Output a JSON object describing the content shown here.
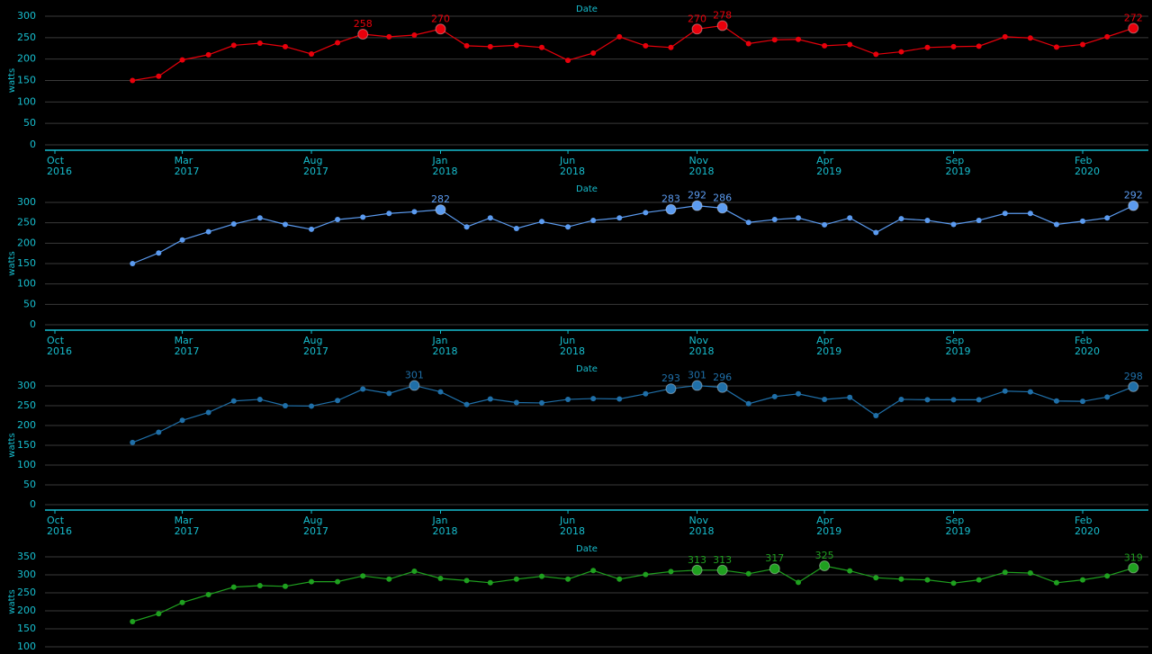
{
  "colors": {
    "background": "#000000",
    "axis_text": "#17becf",
    "grid": "#3a3a3a",
    "axis_line": "#17becf",
    "series": [
      "#e8000b",
      "#5b9bf0",
      "#1f6fa8",
      "#1fa01f"
    ]
  },
  "chart_data": [
    {
      "type": "line",
      "title": "Date",
      "ylabel": "watts",
      "ylim": [
        0,
        300
      ],
      "yticks": [
        0,
        50,
        100,
        150,
        200,
        250,
        300
      ],
      "grid": true,
      "xticks": [
        {
          "date": "2016-10-01",
          "label": "Oct\n2016"
        },
        {
          "date": "2017-03-01",
          "label": "Mar\n2017"
        },
        {
          "date": "2017-08-01",
          "label": "Aug\n2017"
        },
        {
          "date": "2018-01-01",
          "label": "Jan\n2018"
        },
        {
          "date": "2018-06-01",
          "label": "Jun\n2018"
        },
        {
          "date": "2018-11-01",
          "label": "Nov\n2018"
        },
        {
          "date": "2019-04-01",
          "label": "Apr\n2019"
        },
        {
          "date": "2019-09-01",
          "label": "Sep\n2019"
        },
        {
          "date": "2020-02-01",
          "label": "Feb\n2020"
        }
      ],
      "x": [
        "2017-01-01",
        "2017-02-01",
        "2017-03-01",
        "2017-04-01",
        "2017-05-01",
        "2017-06-01",
        "2017-07-01",
        "2017-08-01",
        "2017-09-01",
        "2017-10-01",
        "2017-11-01",
        "2017-12-01",
        "2018-01-01",
        "2018-02-01",
        "2018-03-01",
        "2018-04-01",
        "2018-05-01",
        "2018-06-01",
        "2018-07-01",
        "2018-08-01",
        "2018-09-01",
        "2018-10-01",
        "2018-11-01",
        "2018-12-01",
        "2019-01-01",
        "2019-02-01",
        "2019-03-01",
        "2019-04-01",
        "2019-05-01",
        "2019-06-01",
        "2019-07-01",
        "2019-08-01",
        "2019-09-01",
        "2019-10-01",
        "2019-11-01",
        "2019-12-01",
        "2020-01-01",
        "2020-02-01",
        "2020-03-01",
        "2020-04-01"
      ],
      "values": [
        150,
        160,
        198,
        210,
        232,
        237,
        229,
        212,
        238,
        258,
        252,
        256,
        270,
        231,
        229,
        232,
        227,
        197,
        214,
        252,
        231,
        227,
        270,
        278,
        236,
        245,
        246,
        231,
        234,
        211,
        217,
        227,
        229,
        230,
        252,
        249,
        228,
        234,
        252,
        272
      ],
      "highlights": [
        9,
        12,
        22,
        23,
        39
      ],
      "labels": [
        "258",
        "270",
        "270",
        "278",
        "272"
      ]
    },
    {
      "type": "line",
      "title": "Date",
      "ylabel": "watts",
      "ylim": [
        0,
        300
      ],
      "yticks": [
        0,
        50,
        100,
        150,
        200,
        250,
        300
      ],
      "grid": true,
      "xticks": [
        {
          "date": "2016-10-01",
          "label": "Oct\n2016"
        },
        {
          "date": "2017-03-01",
          "label": "Mar\n2017"
        },
        {
          "date": "2017-08-01",
          "label": "Aug\n2017"
        },
        {
          "date": "2018-01-01",
          "label": "Jan\n2018"
        },
        {
          "date": "2018-06-01",
          "label": "Jun\n2018"
        },
        {
          "date": "2018-11-01",
          "label": "Nov\n2018"
        },
        {
          "date": "2019-04-01",
          "label": "Apr\n2019"
        },
        {
          "date": "2019-09-01",
          "label": "Sep\n2019"
        },
        {
          "date": "2020-02-01",
          "label": "Feb\n2020"
        }
      ],
      "x": [
        "2017-01-01",
        "2017-02-01",
        "2017-03-01",
        "2017-04-01",
        "2017-05-01",
        "2017-06-01",
        "2017-07-01",
        "2017-08-01",
        "2017-09-01",
        "2017-10-01",
        "2017-11-01",
        "2017-12-01",
        "2018-01-01",
        "2018-02-01",
        "2018-03-01",
        "2018-04-01",
        "2018-05-01",
        "2018-06-01",
        "2018-07-01",
        "2018-08-01",
        "2018-09-01",
        "2018-10-01",
        "2018-11-01",
        "2018-12-01",
        "2019-01-01",
        "2019-02-01",
        "2019-03-01",
        "2019-04-01",
        "2019-05-01",
        "2019-06-01",
        "2019-07-01",
        "2019-08-01",
        "2019-09-01",
        "2019-10-01",
        "2019-11-01",
        "2019-12-01",
        "2020-01-01",
        "2020-02-01",
        "2020-03-01",
        "2020-04-01"
      ],
      "values": [
        150,
        176,
        208,
        228,
        247,
        262,
        246,
        234,
        258,
        264,
        273,
        277,
        282,
        240,
        262,
        236,
        253,
        240,
        256,
        262,
        275,
        283,
        292,
        286,
        251,
        258,
        262,
        245,
        262,
        226,
        260,
        256,
        246,
        256,
        273,
        273,
        246,
        254,
        262,
        292
      ],
      "highlights": [
        12,
        21,
        22,
        23,
        39
      ],
      "labels": [
        "282",
        "283",
        "292",
        "286",
        "292"
      ]
    },
    {
      "type": "line",
      "title": "Date",
      "ylabel": "watts",
      "ylim": [
        0,
        300
      ],
      "yticks": [
        0,
        50,
        100,
        150,
        200,
        250,
        300
      ],
      "grid": true,
      "xticks": [
        {
          "date": "2016-10-01",
          "label": "Oct\n2016"
        },
        {
          "date": "2017-03-01",
          "label": "Mar\n2017"
        },
        {
          "date": "2017-08-01",
          "label": "Aug\n2017"
        },
        {
          "date": "2018-01-01",
          "label": "Jan\n2018"
        },
        {
          "date": "2018-06-01",
          "label": "Jun\n2018"
        },
        {
          "date": "2018-11-01",
          "label": "Nov\n2018"
        },
        {
          "date": "2019-04-01",
          "label": "Apr\n2019"
        },
        {
          "date": "2019-09-01",
          "label": "Sep\n2019"
        },
        {
          "date": "2020-02-01",
          "label": "Feb\n2020"
        }
      ],
      "x": [
        "2017-01-01",
        "2017-02-01",
        "2017-03-01",
        "2017-04-01",
        "2017-05-01",
        "2017-06-01",
        "2017-07-01",
        "2017-08-01",
        "2017-09-01",
        "2017-10-01",
        "2017-11-01",
        "2017-12-01",
        "2018-01-01",
        "2018-02-01",
        "2018-03-01",
        "2018-04-01",
        "2018-05-01",
        "2018-06-01",
        "2018-07-01",
        "2018-08-01",
        "2018-09-01",
        "2018-10-01",
        "2018-11-01",
        "2018-12-01",
        "2019-01-01",
        "2019-02-01",
        "2019-03-01",
        "2019-04-01",
        "2019-05-01",
        "2019-06-01",
        "2019-07-01",
        "2019-08-01",
        "2019-09-01",
        "2019-10-01",
        "2019-11-01",
        "2019-12-01",
        "2020-01-01",
        "2020-02-01",
        "2020-03-01",
        "2020-04-01"
      ],
      "values": [
        157,
        183,
        213,
        233,
        262,
        266,
        250,
        249,
        263,
        292,
        281,
        301,
        285,
        253,
        267,
        258,
        257,
        266,
        268,
        267,
        280,
        293,
        301,
        296,
        255,
        273,
        280,
        266,
        271,
        225,
        266,
        265,
        265,
        265,
        287,
        285,
        262,
        261,
        272,
        298
      ],
      "highlights": [
        11,
        21,
        22,
        23,
        39
      ],
      "labels": [
        "301",
        "293",
        "301",
        "296",
        "298"
      ]
    },
    {
      "type": "line",
      "title": "Date",
      "ylabel": "watts",
      "ylim": [
        100,
        350
      ],
      "yticks": [
        100,
        150,
        200,
        250,
        300,
        350
      ],
      "grid": true,
      "xticks": [],
      "x": [
        "2017-01-01",
        "2017-02-01",
        "2017-03-01",
        "2017-04-01",
        "2017-05-01",
        "2017-06-01",
        "2017-07-01",
        "2017-08-01",
        "2017-09-01",
        "2017-10-01",
        "2017-11-01",
        "2017-12-01",
        "2018-01-01",
        "2018-02-01",
        "2018-03-01",
        "2018-04-01",
        "2018-05-01",
        "2018-06-01",
        "2018-07-01",
        "2018-08-01",
        "2018-09-01",
        "2018-10-01",
        "2018-11-01",
        "2018-12-01",
        "2019-01-01",
        "2019-02-01",
        "2019-03-01",
        "2019-04-01",
        "2019-05-01",
        "2019-06-01",
        "2019-07-01",
        "2019-08-01",
        "2019-09-01",
        "2019-10-01",
        "2019-11-01",
        "2019-12-01",
        "2020-01-01",
        "2020-02-01",
        "2020-03-01",
        "2020-04-01"
      ],
      "values": [
        170,
        192,
        223,
        245,
        266,
        270,
        268,
        281,
        281,
        297,
        288,
        310,
        290,
        284,
        278,
        288,
        296,
        288,
        312,
        288,
        301,
        309,
        313,
        313,
        303,
        317,
        279,
        325,
        311,
        292,
        288,
        286,
        277,
        286,
        307,
        305,
        278,
        286,
        297,
        319
      ],
      "highlights": [
        22,
        23,
        25,
        27,
        39
      ],
      "labels": [
        "313",
        "313",
        "317",
        "325",
        "319"
      ]
    }
  ]
}
